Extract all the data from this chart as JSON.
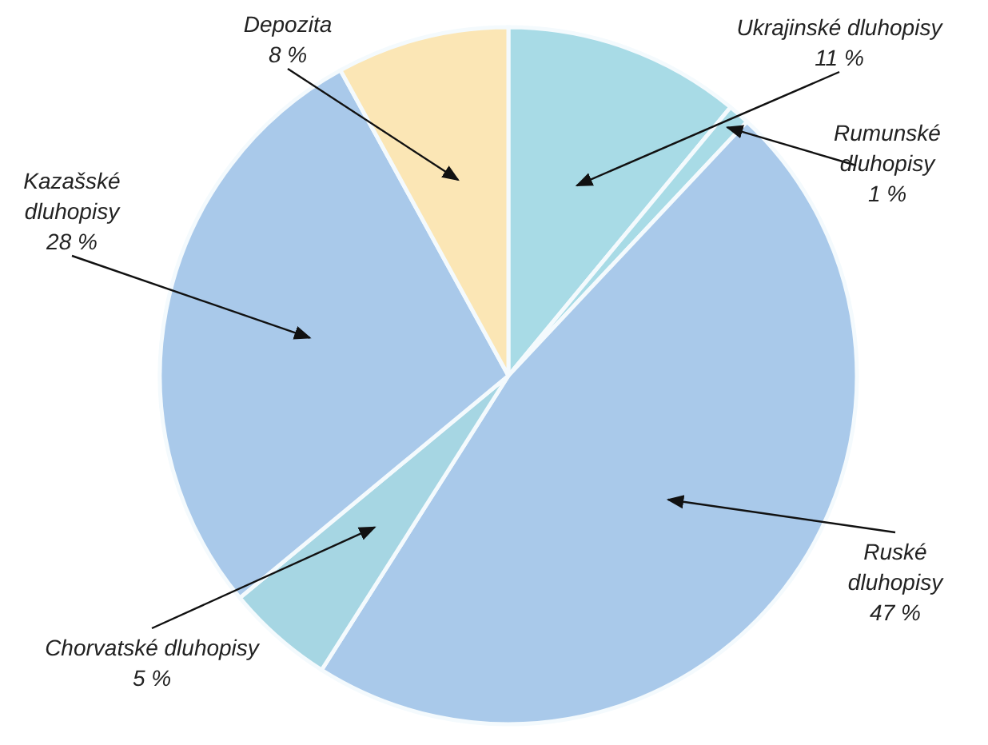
{
  "chart_data": {
    "type": "pie",
    "categories": [
      "Ukrajinské dluhopisy",
      "Rumunské dluhopisy",
      "Ruské dluhopisy",
      "Chorvatské dluhopisy",
      "Kazašské dluhopisy",
      "Depozita"
    ],
    "values": [
      11,
      1,
      47,
      5,
      28,
      8
    ],
    "value_labels": [
      "11 %",
      "1 %",
      "47 %",
      "5 %",
      "28 %",
      "8 %"
    ],
    "colors": [
      "#a8dbe6",
      "#a8dbe6",
      "#a9c9ea",
      "#a6d6e3",
      "#a9c9ea",
      "#fbe6b5"
    ]
  }
}
